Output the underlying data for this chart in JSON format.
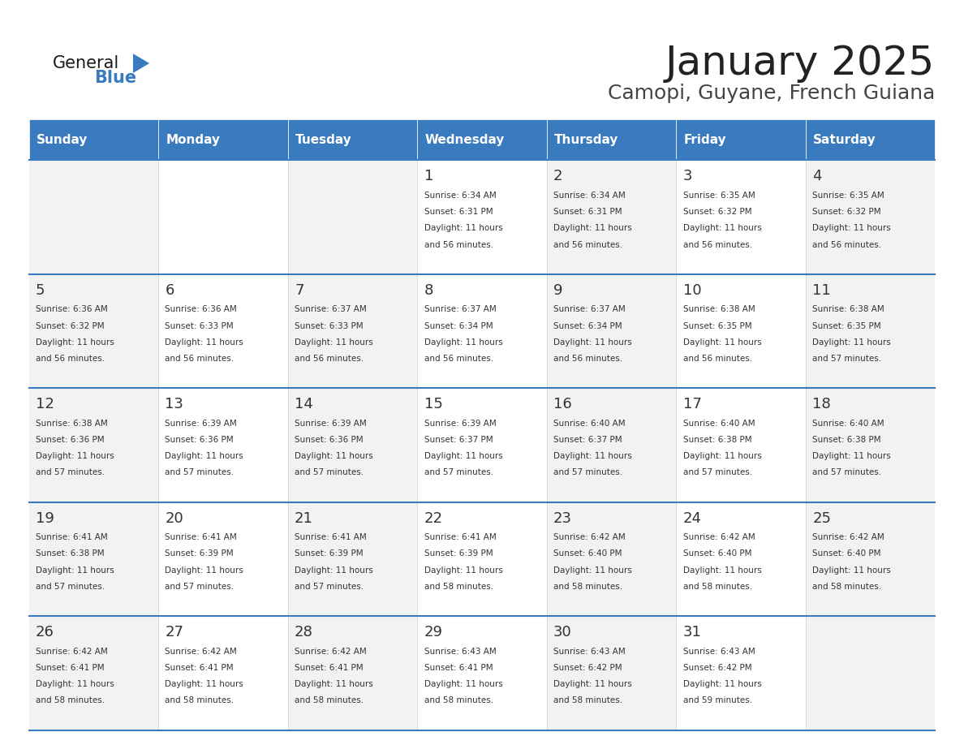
{
  "title": "January 2025",
  "subtitle": "Camopi, Guyane, French Guiana",
  "header_bg": "#3a7abf",
  "header_text_color": "#ffffff",
  "day_names": [
    "Sunday",
    "Monday",
    "Tuesday",
    "Wednesday",
    "Thursday",
    "Friday",
    "Saturday"
  ],
  "cell_bg_even": "#f2f2f2",
  "cell_bg_odd": "#ffffff",
  "border_color": "#3a7abf",
  "text_color": "#333333",
  "title_color": "#222222",
  "subtitle_color": "#444444",
  "days": [
    {
      "day": 1,
      "col": 3,
      "row": 0,
      "sunrise": "6:34 AM",
      "sunset": "6:31 PM",
      "daylight": "11 hours and 56 minutes."
    },
    {
      "day": 2,
      "col": 4,
      "row": 0,
      "sunrise": "6:34 AM",
      "sunset": "6:31 PM",
      "daylight": "11 hours and 56 minutes."
    },
    {
      "day": 3,
      "col": 5,
      "row": 0,
      "sunrise": "6:35 AM",
      "sunset": "6:32 PM",
      "daylight": "11 hours and 56 minutes."
    },
    {
      "day": 4,
      "col": 6,
      "row": 0,
      "sunrise": "6:35 AM",
      "sunset": "6:32 PM",
      "daylight": "11 hours and 56 minutes."
    },
    {
      "day": 5,
      "col": 0,
      "row": 1,
      "sunrise": "6:36 AM",
      "sunset": "6:32 PM",
      "daylight": "11 hours and 56 minutes."
    },
    {
      "day": 6,
      "col": 1,
      "row": 1,
      "sunrise": "6:36 AM",
      "sunset": "6:33 PM",
      "daylight": "11 hours and 56 minutes."
    },
    {
      "day": 7,
      "col": 2,
      "row": 1,
      "sunrise": "6:37 AM",
      "sunset": "6:33 PM",
      "daylight": "11 hours and 56 minutes."
    },
    {
      "day": 8,
      "col": 3,
      "row": 1,
      "sunrise": "6:37 AM",
      "sunset": "6:34 PM",
      "daylight": "11 hours and 56 minutes."
    },
    {
      "day": 9,
      "col": 4,
      "row": 1,
      "sunrise": "6:37 AM",
      "sunset": "6:34 PM",
      "daylight": "11 hours and 56 minutes."
    },
    {
      "day": 10,
      "col": 5,
      "row": 1,
      "sunrise": "6:38 AM",
      "sunset": "6:35 PM",
      "daylight": "11 hours and 56 minutes."
    },
    {
      "day": 11,
      "col": 6,
      "row": 1,
      "sunrise": "6:38 AM",
      "sunset": "6:35 PM",
      "daylight": "11 hours and 57 minutes."
    },
    {
      "day": 12,
      "col": 0,
      "row": 2,
      "sunrise": "6:38 AM",
      "sunset": "6:36 PM",
      "daylight": "11 hours and 57 minutes."
    },
    {
      "day": 13,
      "col": 1,
      "row": 2,
      "sunrise": "6:39 AM",
      "sunset": "6:36 PM",
      "daylight": "11 hours and 57 minutes."
    },
    {
      "day": 14,
      "col": 2,
      "row": 2,
      "sunrise": "6:39 AM",
      "sunset": "6:36 PM",
      "daylight": "11 hours and 57 minutes."
    },
    {
      "day": 15,
      "col": 3,
      "row": 2,
      "sunrise": "6:39 AM",
      "sunset": "6:37 PM",
      "daylight": "11 hours and 57 minutes."
    },
    {
      "day": 16,
      "col": 4,
      "row": 2,
      "sunrise": "6:40 AM",
      "sunset": "6:37 PM",
      "daylight": "11 hours and 57 minutes."
    },
    {
      "day": 17,
      "col": 5,
      "row": 2,
      "sunrise": "6:40 AM",
      "sunset": "6:38 PM",
      "daylight": "11 hours and 57 minutes."
    },
    {
      "day": 18,
      "col": 6,
      "row": 2,
      "sunrise": "6:40 AM",
      "sunset": "6:38 PM",
      "daylight": "11 hours and 57 minutes."
    },
    {
      "day": 19,
      "col": 0,
      "row": 3,
      "sunrise": "6:41 AM",
      "sunset": "6:38 PM",
      "daylight": "11 hours and 57 minutes."
    },
    {
      "day": 20,
      "col": 1,
      "row": 3,
      "sunrise": "6:41 AM",
      "sunset": "6:39 PM",
      "daylight": "11 hours and 57 minutes."
    },
    {
      "day": 21,
      "col": 2,
      "row": 3,
      "sunrise": "6:41 AM",
      "sunset": "6:39 PM",
      "daylight": "11 hours and 57 minutes."
    },
    {
      "day": 22,
      "col": 3,
      "row": 3,
      "sunrise": "6:41 AM",
      "sunset": "6:39 PM",
      "daylight": "11 hours and 58 minutes."
    },
    {
      "day": 23,
      "col": 4,
      "row": 3,
      "sunrise": "6:42 AM",
      "sunset": "6:40 PM",
      "daylight": "11 hours and 58 minutes."
    },
    {
      "day": 24,
      "col": 5,
      "row": 3,
      "sunrise": "6:42 AM",
      "sunset": "6:40 PM",
      "daylight": "11 hours and 58 minutes."
    },
    {
      "day": 25,
      "col": 6,
      "row": 3,
      "sunrise": "6:42 AM",
      "sunset": "6:40 PM",
      "daylight": "11 hours and 58 minutes."
    },
    {
      "day": 26,
      "col": 0,
      "row": 4,
      "sunrise": "6:42 AM",
      "sunset": "6:41 PM",
      "daylight": "11 hours and 58 minutes."
    },
    {
      "day": 27,
      "col": 1,
      "row": 4,
      "sunrise": "6:42 AM",
      "sunset": "6:41 PM",
      "daylight": "11 hours and 58 minutes."
    },
    {
      "day": 28,
      "col": 2,
      "row": 4,
      "sunrise": "6:42 AM",
      "sunset": "6:41 PM",
      "daylight": "11 hours and 58 minutes."
    },
    {
      "day": 29,
      "col": 3,
      "row": 4,
      "sunrise": "6:43 AM",
      "sunset": "6:41 PM",
      "daylight": "11 hours and 58 minutes."
    },
    {
      "day": 30,
      "col": 4,
      "row": 4,
      "sunrise": "6:43 AM",
      "sunset": "6:42 PM",
      "daylight": "11 hours and 58 minutes."
    },
    {
      "day": 31,
      "col": 5,
      "row": 4,
      "sunrise": "6:43 AM",
      "sunset": "6:42 PM",
      "daylight": "11 hours and 59 minutes."
    }
  ],
  "logo_general_color": "#1a1a1a",
  "logo_blue_color": "#3a7abf",
  "num_rows": 5
}
